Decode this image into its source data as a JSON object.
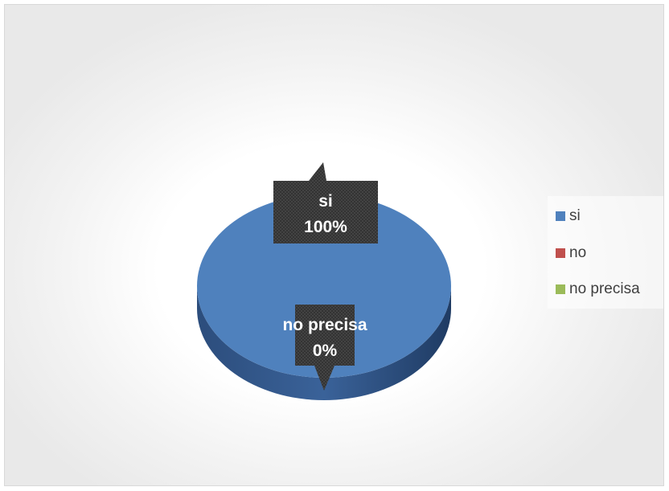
{
  "chart_data": {
    "type": "pie",
    "categories": [
      "si",
      "no",
      "no precisa"
    ],
    "values": [
      100,
      0,
      0
    ],
    "colors": [
      "#4f81bd",
      "#c0504d",
      "#9bbb59"
    ],
    "data_labels": [
      {
        "category": "si",
        "percent": "100%"
      },
      {
        "category": "no precisa",
        "percent": "0%"
      }
    ],
    "legend_position": "right",
    "style": "3d"
  },
  "legend": {
    "items": [
      {
        "label": "si",
        "color": "#4f81bd"
      },
      {
        "label": "no",
        "color": "#c0504d"
      },
      {
        "label": "no precisa",
        "color": "#9bbb59"
      }
    ]
  }
}
